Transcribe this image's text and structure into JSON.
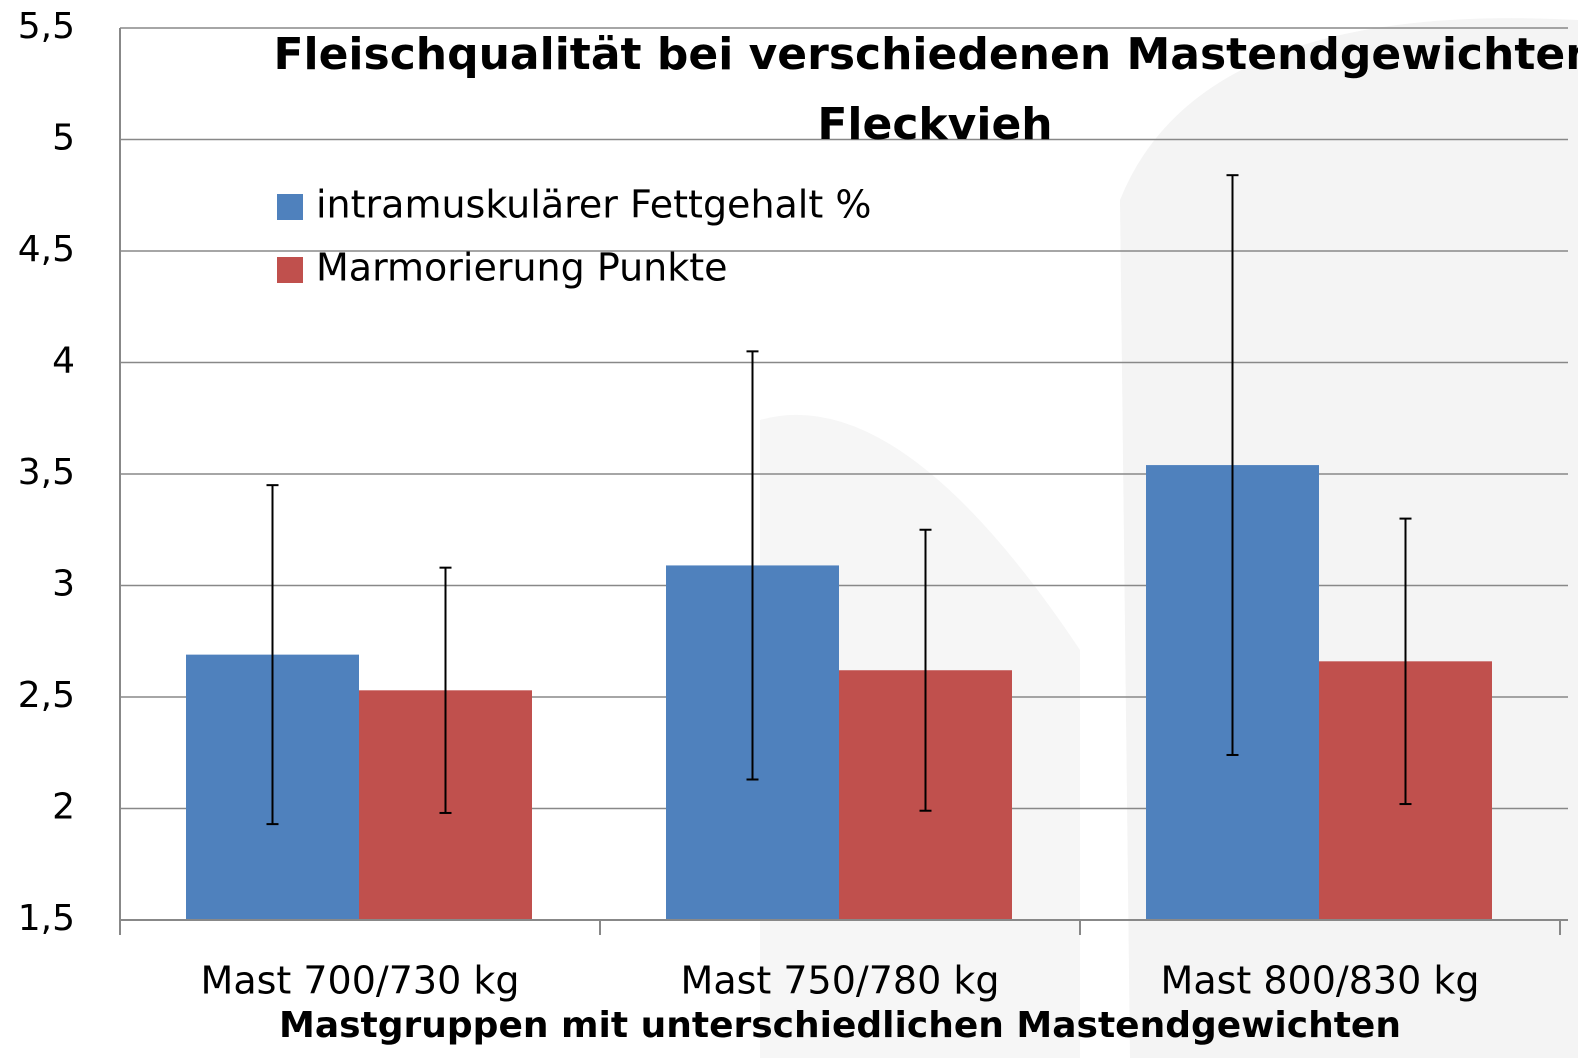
{
  "chart_data": {
    "type": "bar",
    "title": "Fleischqualität bei verschiedenen Mastendgewichten",
    "subtitle": "Fleckvieh",
    "x_label": "Mastgruppen mit unterschiedlichen Mastendgewichten",
    "categories": [
      "Mast 700/730 kg",
      "Mast 750/780 kg",
      "Mast 800/830 kg"
    ],
    "series": [
      {
        "name": "intramuskulärer Fettgehalt  %",
        "color": "#4f81bd",
        "values": [
          2.69,
          3.09,
          3.54
        ],
        "errors": [
          0.76,
          0.96,
          1.3
        ]
      },
      {
        "name": "Marmorierung  Punkte",
        "color": "#c0504d",
        "values": [
          2.53,
          2.62,
          2.66
        ],
        "errors": [
          0.55,
          0.63,
          0.64
        ]
      }
    ],
    "ylim": [
      1.5,
      5.5
    ],
    "yticks": [
      {
        "value": 1.5,
        "label": "1,5"
      },
      2,
      {
        "value": 2.5,
        "label": "2,5"
      },
      3,
      {
        "value": 3.5,
        "label": "3,5"
      },
      4,
      {
        "value": 4.5,
        "label": "4,5"
      },
      5,
      {
        "value": 5.5,
        "label": "5,5"
      }
    ],
    "grid": true
  }
}
